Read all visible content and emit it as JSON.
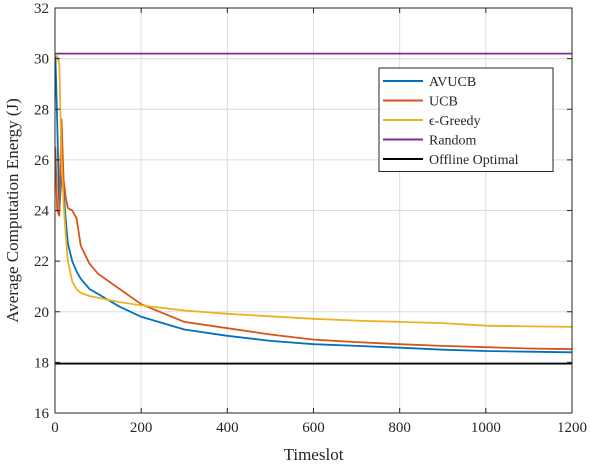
{
  "chart_data": {
    "type": "line",
    "title": "",
    "xlabel": "Timeslot",
    "ylabel": "Average Computation Energy  (J)",
    "xlim": [
      0,
      1200
    ],
    "ylim": [
      16,
      32
    ],
    "xticks": [
      0,
      200,
      400,
      600,
      800,
      1000,
      1200
    ],
    "yticks": [
      16,
      18,
      20,
      22,
      24,
      26,
      28,
      30,
      32
    ],
    "grid": true,
    "legend_position": "top-right",
    "series": [
      {
        "name": "AVUCB",
        "color": "#0072BD",
        "x": [
          1,
          5,
          10,
          15,
          20,
          25,
          30,
          40,
          50,
          60,
          80,
          100,
          150,
          200,
          300,
          400,
          500,
          600,
          700,
          800,
          900,
          1000,
          1100,
          1200
        ],
        "y": [
          30.1,
          27.5,
          24.0,
          25.4,
          24.8,
          23.6,
          22.7,
          22.0,
          21.6,
          21.3,
          20.9,
          20.7,
          20.2,
          19.8,
          19.3,
          19.05,
          18.85,
          18.72,
          18.65,
          18.58,
          18.5,
          18.45,
          18.42,
          18.4
        ]
      },
      {
        "name": "UCB",
        "color": "#D95319",
        "x": [
          1,
          5,
          10,
          15,
          20,
          25,
          30,
          40,
          50,
          60,
          80,
          100,
          150,
          200,
          300,
          400,
          500,
          600,
          700,
          800,
          900,
          1000,
          1100,
          1200
        ],
        "y": [
          26.5,
          24.0,
          23.8,
          27.6,
          25.2,
          24.5,
          24.1,
          24.0,
          23.7,
          22.6,
          21.9,
          21.5,
          20.9,
          20.3,
          19.6,
          19.35,
          19.1,
          18.9,
          18.8,
          18.72,
          18.65,
          18.6,
          18.55,
          18.52
        ]
      },
      {
        "name": "ϵ-Greedy",
        "color": "#EDB120",
        "x": [
          1,
          5,
          10,
          15,
          20,
          25,
          30,
          40,
          50,
          60,
          80,
          100,
          150,
          200,
          300,
          400,
          500,
          600,
          700,
          800,
          900,
          1000,
          1100,
          1200
        ],
        "y": [
          30.1,
          30.1,
          29.8,
          26.0,
          24.3,
          23.0,
          22.0,
          21.2,
          20.9,
          20.75,
          20.62,
          20.55,
          20.38,
          20.25,
          20.05,
          19.92,
          19.82,
          19.72,
          19.65,
          19.6,
          19.55,
          19.45,
          19.42,
          19.4
        ]
      },
      {
        "name": "Random",
        "color": "#7E2F8E",
        "x": [
          0,
          1200
        ],
        "y": [
          30.2,
          30.2
        ]
      },
      {
        "name": "Offline Optimal",
        "color": "#000000",
        "x": [
          0,
          1200
        ],
        "y": [
          17.95,
          17.95
        ]
      }
    ]
  }
}
